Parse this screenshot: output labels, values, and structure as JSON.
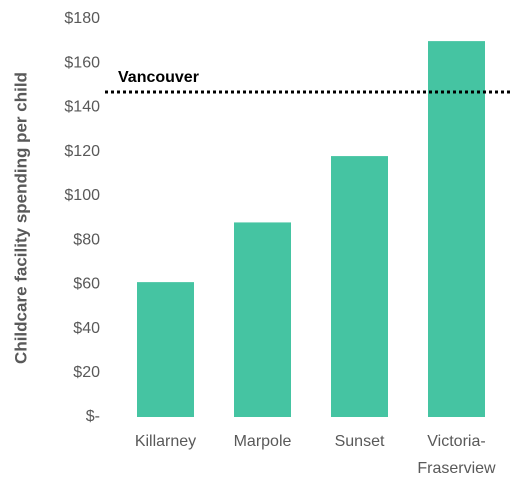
{
  "chart_data": {
    "type": "bar",
    "y_axis_label": "Childcare facility spending per child",
    "categories": [
      "Killarney",
      "Marpole",
      "Sunset",
      "Victoria-Fraserview"
    ],
    "values": [
      61,
      88,
      118,
      170
    ],
    "color": "#45c4a2",
    "ylim": [
      0,
      180
    ],
    "yticks": [
      {
        "value": 0,
        "label": "$-"
      },
      {
        "value": 20,
        "label": "$20"
      },
      {
        "value": 40,
        "label": "$40"
      },
      {
        "value": 60,
        "label": "$60"
      },
      {
        "value": 80,
        "label": "$80"
      },
      {
        "value": 100,
        "label": "$100"
      },
      {
        "value": 120,
        "label": "$120"
      },
      {
        "value": 140,
        "label": "$140"
      },
      {
        "value": 160,
        "label": "$160"
      },
      {
        "value": 180,
        "label": "$180"
      }
    ],
    "reference_line": {
      "label": "Vancouver",
      "value": 147,
      "color": "#000000"
    },
    "grid": false
  }
}
